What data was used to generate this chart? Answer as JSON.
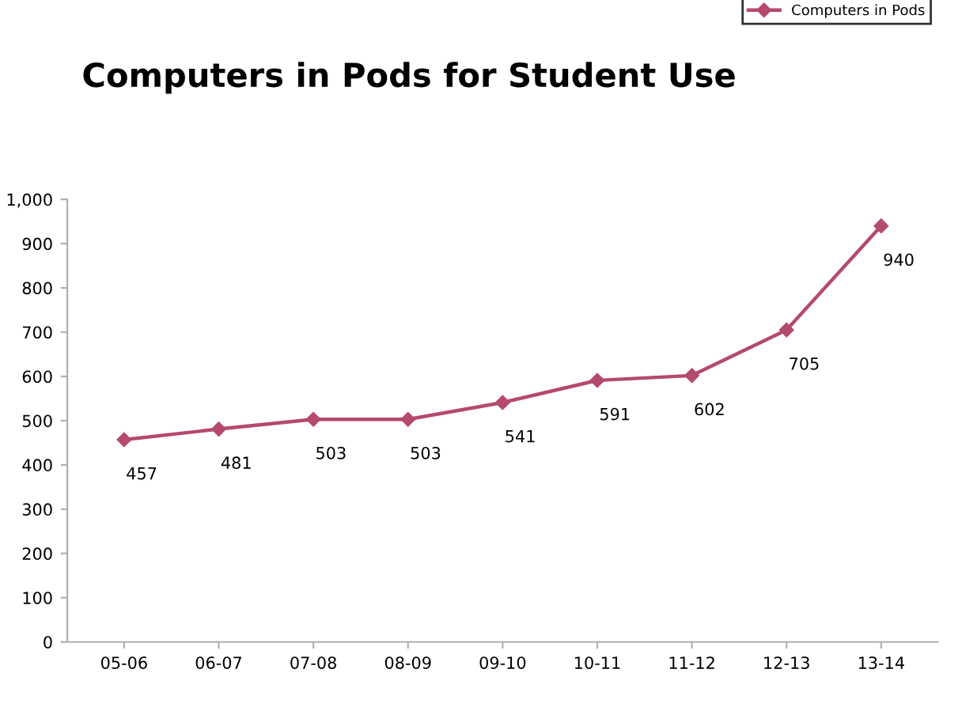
{
  "chart_data": {
    "type": "line",
    "title": "Computers in Pods for Student Use",
    "categories": [
      "05-06",
      "06-07",
      "07-08",
      "08-09",
      "09-10",
      "10-11",
      "11-12",
      "12-13",
      "13-14"
    ],
    "series": [
      {
        "name": "Computers in Pods",
        "color": "#b5496e",
        "values": [
          457,
          481,
          503,
          503,
          541,
          591,
          602,
          705,
          940
        ]
      }
    ],
    "ylim": [
      0,
      1000
    ],
    "yticks": [
      0,
      100,
      200,
      300,
      400,
      500,
      600,
      700,
      800,
      900,
      {
        "value": 1000,
        "label": "1,000"
      }
    ],
    "grid": false,
    "legend": "top right",
    "marker": "diamond",
    "line_style": "solid",
    "data_labels": true
  }
}
